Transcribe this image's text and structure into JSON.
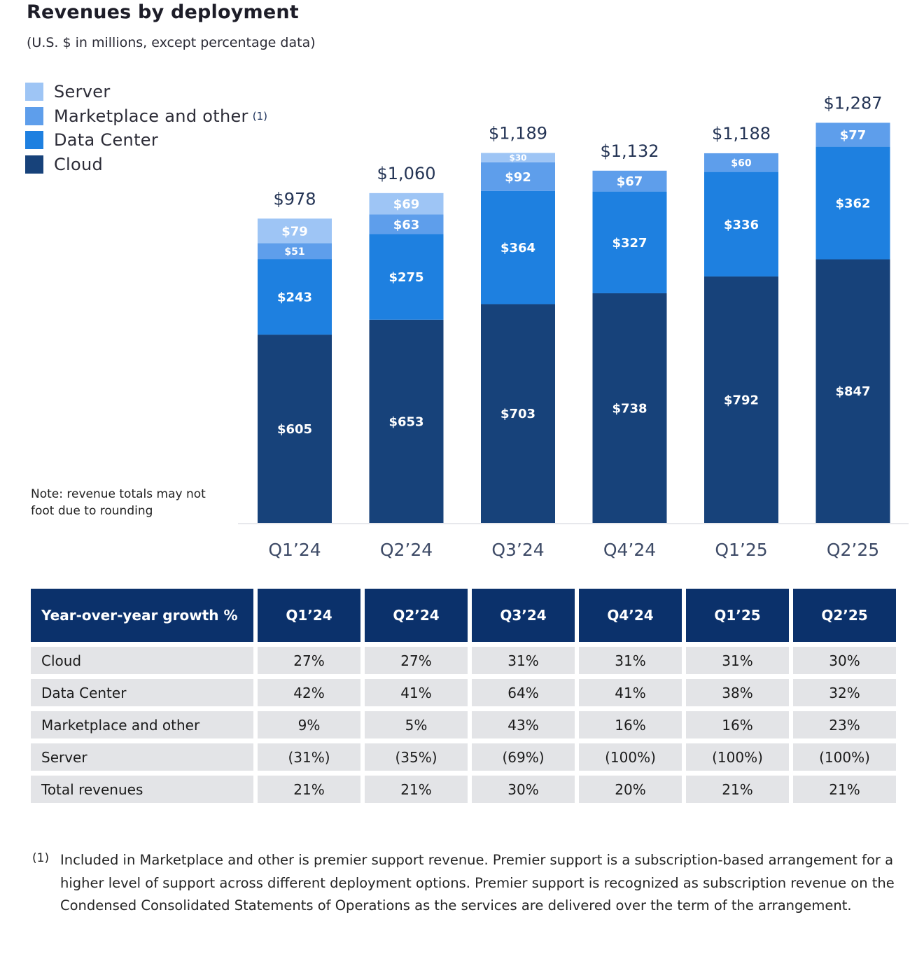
{
  "title": "Revenues by deployment",
  "subtitle": "(U.S. $ in millions, except percentage data)",
  "note": "Note: revenue totals may not foot due to rounding",
  "legend": [
    {
      "label": "Server",
      "note": "",
      "color": "#9ec5f5"
    },
    {
      "label": "Marketplace and other",
      "note": "(1)",
      "color": "#5e9eeb"
    },
    {
      "label": "Data Center",
      "note": "",
      "color": "#1e80e0"
    },
    {
      "label": "Cloud",
      "note": "",
      "color": "#17427a"
    }
  ],
  "chart_data": {
    "type": "bar",
    "stacked": true,
    "title": "Revenues by deployment",
    "subtitle": "(U.S. $ in millions, except percentage data)",
    "xlabel": "",
    "ylabel": "",
    "categories": [
      "Q1’24",
      "Q2’24",
      "Q3’24",
      "Q4’24",
      "Q1’25",
      "Q2’25"
    ],
    "series": [
      {
        "name": "Cloud",
        "color": "#17427a",
        "values": [
          605,
          653,
          703,
          738,
          792,
          847
        ],
        "labels": [
          "$605",
          "$653",
          "$703",
          "$738",
          "$792",
          "$847"
        ]
      },
      {
        "name": "Data Center",
        "color": "#1e80e0",
        "values": [
          243,
          275,
          364,
          327,
          336,
          362
        ],
        "labels": [
          "$243",
          "$275",
          "$364",
          "$327",
          "$336",
          "$362"
        ]
      },
      {
        "name": "Marketplace and other",
        "color": "#5e9eeb",
        "values": [
          51,
          63,
          92,
          67,
          60,
          77
        ],
        "labels": [
          "$51",
          "$63",
          "$92",
          "$67",
          "$60",
          "$77"
        ]
      },
      {
        "name": "Server",
        "color": "#9ec5f5",
        "values": [
          79,
          69,
          30,
          0,
          0,
          0
        ],
        "labels": [
          "$79",
          "$69",
          "$30",
          "",
          "",
          ""
        ]
      }
    ],
    "totals": [
      978,
      1060,
      1189,
      1132,
      1188,
      1287
    ],
    "total_labels": [
      "$978",
      "$1,060",
      "$1,189",
      "$1,132",
      "$1,188",
      "$1,287"
    ],
    "ylim": [
      0,
      1300
    ],
    "grid": false,
    "legend_position": "top-left"
  },
  "table": {
    "header": [
      "Year-over-year growth %",
      "Q1’24",
      "Q2’24",
      "Q3’24",
      "Q4’24",
      "Q1’25",
      "Q2’25"
    ],
    "rows": [
      [
        "Cloud",
        "27%",
        "27%",
        "31%",
        "31%",
        "31%",
        "30%"
      ],
      [
        "Data Center",
        "42%",
        "41%",
        "64%",
        "41%",
        "38%",
        "32%"
      ],
      [
        "Marketplace and other",
        "9%",
        "5%",
        "43%",
        "16%",
        "16%",
        "23%"
      ],
      [
        "Server",
        "(31%)",
        "(35%)",
        "(69%)",
        "(100%)",
        "(100%)",
        "(100%)"
      ],
      [
        "Total revenues",
        "21%",
        "21%",
        "30%",
        "20%",
        "21%",
        "21%"
      ]
    ]
  },
  "footnote": {
    "mark": "(1)",
    "text": "Included in Marketplace and other is premier support revenue. Premier support is a subscription-based arrangement for a higher level of support across different deployment options. Premier support is recognized as subscription revenue on the Condensed Consolidated Statements of Operations as the services are delivered over the term of the arrangement."
  }
}
